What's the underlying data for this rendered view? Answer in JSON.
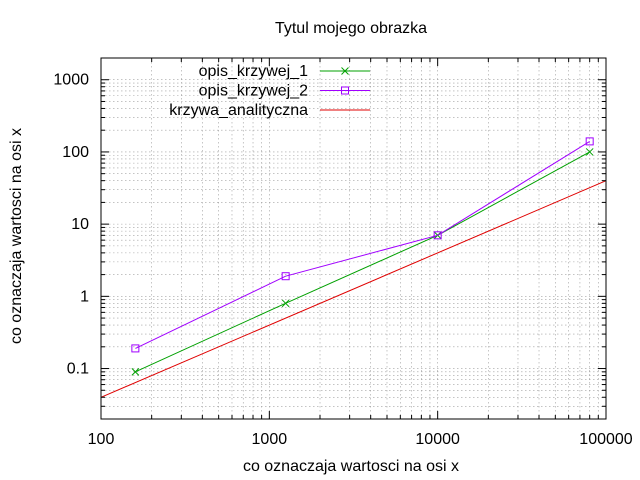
{
  "chart_data": {
    "type": "line",
    "title": "Tytul mojego obrazka",
    "xlabel": "co oznaczaja wartosci na osi x",
    "ylabel": "co oznaczaja wartosci na osi x",
    "xscale": "log",
    "yscale": "log",
    "xlim": [
      100,
      100000
    ],
    "ylim": [
      0.02,
      2000
    ],
    "x_ticks": [
      100,
      1000,
      10000,
      100000
    ],
    "x_tick_labels": [
      "100",
      "1000",
      "10000",
      "100000"
    ],
    "y_ticks": [
      0.1,
      1,
      10,
      100,
      1000
    ],
    "y_tick_labels": [
      "0.1",
      "1",
      "10",
      "100",
      "1000"
    ],
    "grid": true,
    "legend_position": "top-left",
    "series": [
      {
        "name": "opis_krzywej_1",
        "color": "#00a000",
        "marker": "x",
        "x": [
          160,
          1250,
          10000,
          80000
        ],
        "y": [
          0.09,
          0.8,
          7,
          100
        ]
      },
      {
        "name": "opis_krzywej_2",
        "color": "#a000ff",
        "marker": "square",
        "x": [
          160,
          1250,
          10000,
          80000
        ],
        "y": [
          0.19,
          1.9,
          7,
          140
        ]
      },
      {
        "name": "krzywa_analityczna",
        "color": "#e00000",
        "marker": "none",
        "x": [
          100,
          100000
        ],
        "y": [
          0.04,
          40
        ]
      }
    ]
  }
}
